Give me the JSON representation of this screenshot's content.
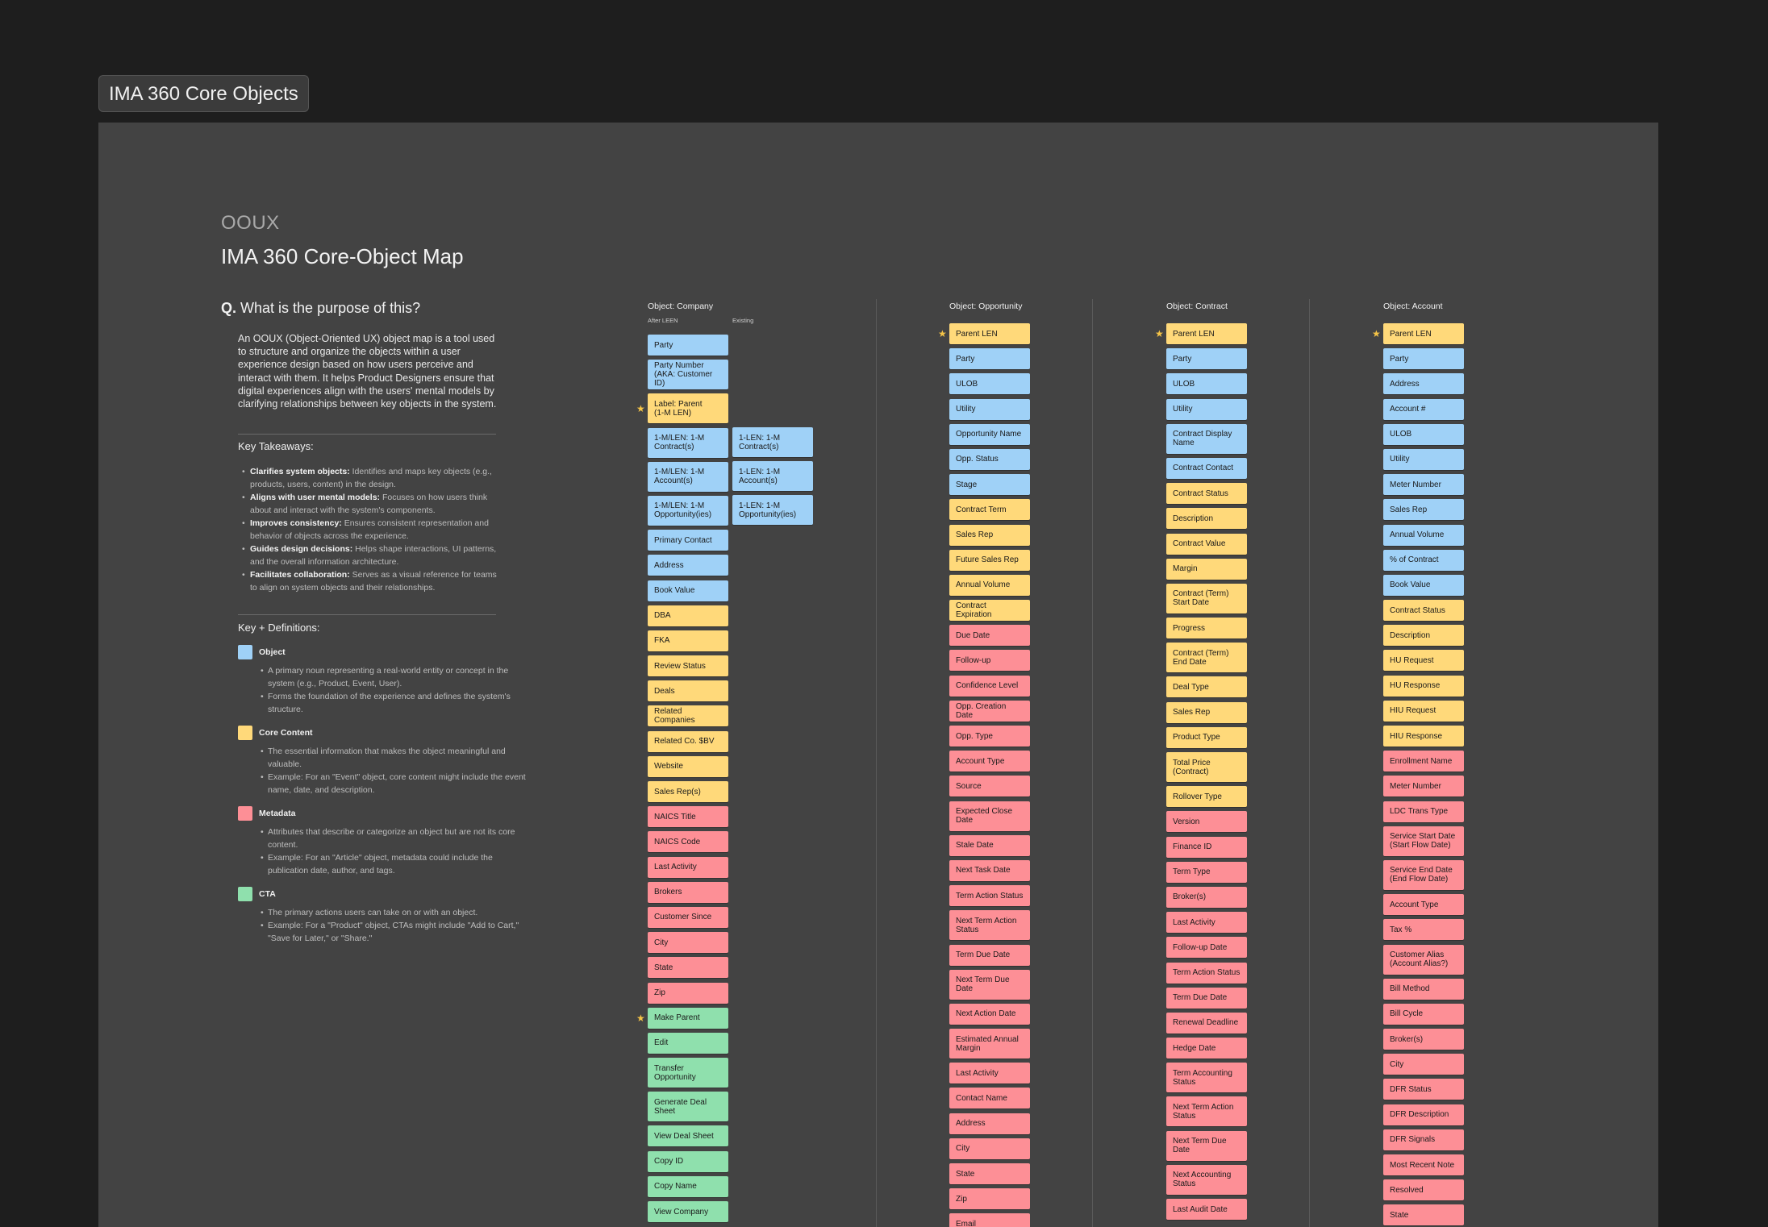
{
  "frame_label": "IMA 360 Core Objects",
  "header": {
    "eyebrow": "OOUX",
    "title": "IMA 360 Core-Object Map"
  },
  "question": {
    "prefix": "Q.",
    "text": "What is the purpose of this?"
  },
  "intro": "An OOUX (Object-Oriented UX) object map is a tool used to structure and organize the objects within a user experience design based on how users perceive and interact with them. It helps Product Designers ensure that digital experiences align with the users' mental models by clarifying relationships between key objects in the system.",
  "takeaways": {
    "heading": "Key Takeaways:",
    "items": [
      {
        "bold": "Clarifies system objects:",
        "text": " Identifies and maps key objects (e.g., products, users, content) in the design."
      },
      {
        "bold": "Aligns with user mental models:",
        "text": " Focuses on how users think about and interact with the system's components."
      },
      {
        "bold": "Improves consistency:",
        "text": " Ensures consistent representation and behavior of objects across the experience."
      },
      {
        "bold": "Guides design decisions:",
        "text": " Helps shape interactions, UI patterns, and the overall information architecture."
      },
      {
        "bold": "Facilitates collaboration:",
        "text": " Serves as a visual reference for teams to align on system objects and their relationships."
      }
    ]
  },
  "definitions": {
    "heading": "Key + Definitions:",
    "items": [
      {
        "name": "Object",
        "color": "#9fd1f7",
        "points": [
          "A primary noun representing a real-world entity or concept in the system (e.g., Product, Event, User).",
          "Forms the foundation of the experience and defines the system's structure."
        ]
      },
      {
        "name": "Core Content",
        "color": "#ffd97a",
        "points": [
          "The essential information that makes the object meaningful and valuable.",
          "Example: For an \"Event\" object, core content might include the event name, date, and description."
        ]
      },
      {
        "name": "Metadata",
        "color": "#fd8f96",
        "points": [
          "Attributes that describe or categorize an object but are not its core content.",
          "Example: For an \"Article\" object, metadata could include the publication date, author, and tags."
        ]
      },
      {
        "name": "CTA",
        "color": "#8fe0ad",
        "points": [
          "The primary actions users can take on or with an object.",
          "Example: For a \"Product\" object, CTAs might include \"Add to Cart,\" \"Save for Later,\" or \"Share.\""
        ]
      }
    ]
  },
  "columns": {
    "company": {
      "title": "Object: Company",
      "sub_after": "After LEEN",
      "sub_existing": "Existing",
      "cards": [
        {
          "label": "Party",
          "type": "object"
        },
        {
          "label": "Party Number\n(AKA: Customer ID)",
          "type": "object"
        },
        {
          "label": "Label: Parent\n(1-M LEN)",
          "type": "core",
          "star": true
        },
        {
          "label": "1-M/LEN: 1-M\nContract(s)",
          "type": "object"
        },
        {
          "label": "1-M/LEN: 1-M\nAccount(s)",
          "type": "object"
        },
        {
          "label": "1-M/LEN: 1-M\nOpportunity(ies)",
          "type": "object"
        },
        {
          "label": "Primary Contact",
          "type": "object"
        },
        {
          "label": "Address",
          "type": "object"
        },
        {
          "label": "Book Value",
          "type": "object"
        },
        {
          "label": "DBA",
          "type": "core"
        },
        {
          "label": "FKA",
          "type": "core"
        },
        {
          "label": "Review Status",
          "type": "core"
        },
        {
          "label": "Deals",
          "type": "core"
        },
        {
          "label": "Related Companies",
          "type": "core"
        },
        {
          "label": "Related Co. $BV",
          "type": "core"
        },
        {
          "label": "Website",
          "type": "core"
        },
        {
          "label": "Sales Rep(s)",
          "type": "core"
        },
        {
          "label": "NAICS Title",
          "type": "meta"
        },
        {
          "label": "NAICS Code",
          "type": "meta"
        },
        {
          "label": "Last Activity",
          "type": "meta"
        },
        {
          "label": "Brokers",
          "type": "meta"
        },
        {
          "label": "Customer Since",
          "type": "meta"
        },
        {
          "label": "City",
          "type": "meta"
        },
        {
          "label": "State",
          "type": "meta"
        },
        {
          "label": "Zip",
          "type": "meta"
        },
        {
          "label": "Make Parent",
          "type": "cta",
          "star": true
        },
        {
          "label": "Edit",
          "type": "cta"
        },
        {
          "label": "Transfer\nOpportunity",
          "type": "cta"
        },
        {
          "label": "Generate Deal\nSheet",
          "type": "cta"
        },
        {
          "label": "View Deal Sheet",
          "type": "cta"
        },
        {
          "label": "Copy ID",
          "type": "cta"
        },
        {
          "label": "Copy Name",
          "type": "cta"
        },
        {
          "label": "View Company",
          "type": "cta"
        }
      ],
      "existing": [
        {
          "label": "1-LEN: 1-M\nContract(s)",
          "type": "object"
        },
        {
          "label": "1-LEN: 1-M\nAccount(s)",
          "type": "object"
        },
        {
          "label": "1-LEN: 1-M\nOpportunity(ies)",
          "type": "object"
        }
      ]
    },
    "opportunity": {
      "title": "Object: Opportunity",
      "cards": [
        {
          "label": "Parent LEN",
          "type": "core",
          "star": true
        },
        {
          "label": "Party",
          "type": "object"
        },
        {
          "label": "ULOB",
          "type": "object"
        },
        {
          "label": "Utility",
          "type": "object"
        },
        {
          "label": "Opportunity Name",
          "type": "object"
        },
        {
          "label": "Opp. Status",
          "type": "object"
        },
        {
          "label": "Stage",
          "type": "object"
        },
        {
          "label": "Contract Term",
          "type": "core"
        },
        {
          "label": "Sales Rep",
          "type": "core"
        },
        {
          "label": "Future Sales Rep",
          "type": "core"
        },
        {
          "label": "Annual Volume",
          "type": "core"
        },
        {
          "label": "Contract Expiration",
          "type": "core"
        },
        {
          "label": "Due Date",
          "type": "meta"
        },
        {
          "label": "Follow-up",
          "type": "meta"
        },
        {
          "label": "Confidence Level",
          "type": "meta"
        },
        {
          "label": "Opp. Creation Date",
          "type": "meta"
        },
        {
          "label": "Opp. Type",
          "type": "meta"
        },
        {
          "label": "Account Type",
          "type": "meta"
        },
        {
          "label": "Source",
          "type": "meta"
        },
        {
          "label": "Expected Close\nDate",
          "type": "meta"
        },
        {
          "label": "Stale Date",
          "type": "meta"
        },
        {
          "label": "Next Task Date",
          "type": "meta"
        },
        {
          "label": "Term Action Status",
          "type": "meta"
        },
        {
          "label": "Next Term Action\nStatus",
          "type": "meta"
        },
        {
          "label": "Term Due Date",
          "type": "meta"
        },
        {
          "label": "Next Term Due\nDate",
          "type": "meta"
        },
        {
          "label": "Next Action Date",
          "type": "meta"
        },
        {
          "label": "Estimated Annual\nMargin",
          "type": "meta"
        },
        {
          "label": "Last Activity",
          "type": "meta"
        },
        {
          "label": "Contact Name",
          "type": "meta"
        },
        {
          "label": "Address",
          "type": "meta"
        },
        {
          "label": "City",
          "type": "meta"
        },
        {
          "label": "State",
          "type": "meta"
        },
        {
          "label": "Zip",
          "type": "meta"
        },
        {
          "label": "Email",
          "type": "meta"
        }
      ]
    },
    "contract": {
      "title": "Object: Contract",
      "cards": [
        {
          "label": "Parent LEN",
          "type": "core",
          "star": true
        },
        {
          "label": "Party",
          "type": "object"
        },
        {
          "label": "ULOB",
          "type": "object"
        },
        {
          "label": "Utility",
          "type": "object"
        },
        {
          "label": "Contract Display\nName",
          "type": "object"
        },
        {
          "label": "Contract Contact",
          "type": "object"
        },
        {
          "label": "Contract Status",
          "type": "core"
        },
        {
          "label": "Description",
          "type": "core"
        },
        {
          "label": "Contract Value",
          "type": "core"
        },
        {
          "label": "Margin",
          "type": "core"
        },
        {
          "label": "Contract (Term)\nStart Date",
          "type": "core"
        },
        {
          "label": "Progress",
          "type": "core"
        },
        {
          "label": "Contract (Term)\nEnd Date",
          "type": "core"
        },
        {
          "label": "Deal Type",
          "type": "core"
        },
        {
          "label": "Sales Rep",
          "type": "core"
        },
        {
          "label": "Product Type",
          "type": "core"
        },
        {
          "label": "Total Price\n(Contract)",
          "type": "core"
        },
        {
          "label": "Rollover Type",
          "type": "core"
        },
        {
          "label": "Version",
          "type": "meta"
        },
        {
          "label": "Finance ID",
          "type": "meta"
        },
        {
          "label": "Term Type",
          "type": "meta"
        },
        {
          "label": "Broker(s)",
          "type": "meta"
        },
        {
          "label": "Last Activity",
          "type": "meta"
        },
        {
          "label": "Follow-up Date",
          "type": "meta"
        },
        {
          "label": "Term Action Status",
          "type": "meta"
        },
        {
          "label": "Term Due Date",
          "type": "meta"
        },
        {
          "label": "Renewal Deadline",
          "type": "meta"
        },
        {
          "label": "Hedge Date",
          "type": "meta"
        },
        {
          "label": "Term Accounting\nStatus",
          "type": "meta"
        },
        {
          "label": "Next Term Action\nStatus",
          "type": "meta"
        },
        {
          "label": "Next Term Due\nDate",
          "type": "meta"
        },
        {
          "label": "Next Accounting\nStatus",
          "type": "meta"
        },
        {
          "label": "Last Audit Date",
          "type": "meta"
        }
      ]
    },
    "account": {
      "title": "Object: Account",
      "cards": [
        {
          "label": "Parent LEN",
          "type": "core",
          "star": true
        },
        {
          "label": "Party",
          "type": "object"
        },
        {
          "label": "Address",
          "type": "object"
        },
        {
          "label": "Account #",
          "type": "object"
        },
        {
          "label": "ULOB",
          "type": "object"
        },
        {
          "label": "Utility",
          "type": "object"
        },
        {
          "label": "Meter Number",
          "type": "object"
        },
        {
          "label": "Sales Rep",
          "type": "object"
        },
        {
          "label": "Annual Volume",
          "type": "object"
        },
        {
          "label": "% of Contract",
          "type": "object"
        },
        {
          "label": "Book Value",
          "type": "object"
        },
        {
          "label": "Contract Status",
          "type": "core"
        },
        {
          "label": "Description",
          "type": "core"
        },
        {
          "label": "HU Request",
          "type": "core"
        },
        {
          "label": "HU Response",
          "type": "core"
        },
        {
          "label": "HIU Request",
          "type": "core"
        },
        {
          "label": "HIU Response",
          "type": "core"
        },
        {
          "label": "Enrollment Name",
          "type": "meta"
        },
        {
          "label": "Meter Number",
          "type": "meta"
        },
        {
          "label": "LDC Trans Type",
          "type": "meta"
        },
        {
          "label": "Service Start Date\n(Start Flow Date)",
          "type": "meta"
        },
        {
          "label": "Service End Date\n(End Flow Date)",
          "type": "meta"
        },
        {
          "label": "Account Type",
          "type": "meta"
        },
        {
          "label": "Tax %",
          "type": "meta"
        },
        {
          "label": "Customer Alias\n(Account Alias?)",
          "type": "meta"
        },
        {
          "label": "Bill Method",
          "type": "meta"
        },
        {
          "label": "Bill Cycle",
          "type": "meta"
        },
        {
          "label": "Broker(s)",
          "type": "meta"
        },
        {
          "label": "City",
          "type": "meta"
        },
        {
          "label": "DFR Status",
          "type": "meta"
        },
        {
          "label": "DFR Description",
          "type": "meta"
        },
        {
          "label": "DFR Signals",
          "type": "meta"
        },
        {
          "label": "Most Recent Note",
          "type": "meta"
        },
        {
          "label": "Resolved",
          "type": "meta"
        },
        {
          "label": "State",
          "type": "meta"
        }
      ]
    }
  }
}
